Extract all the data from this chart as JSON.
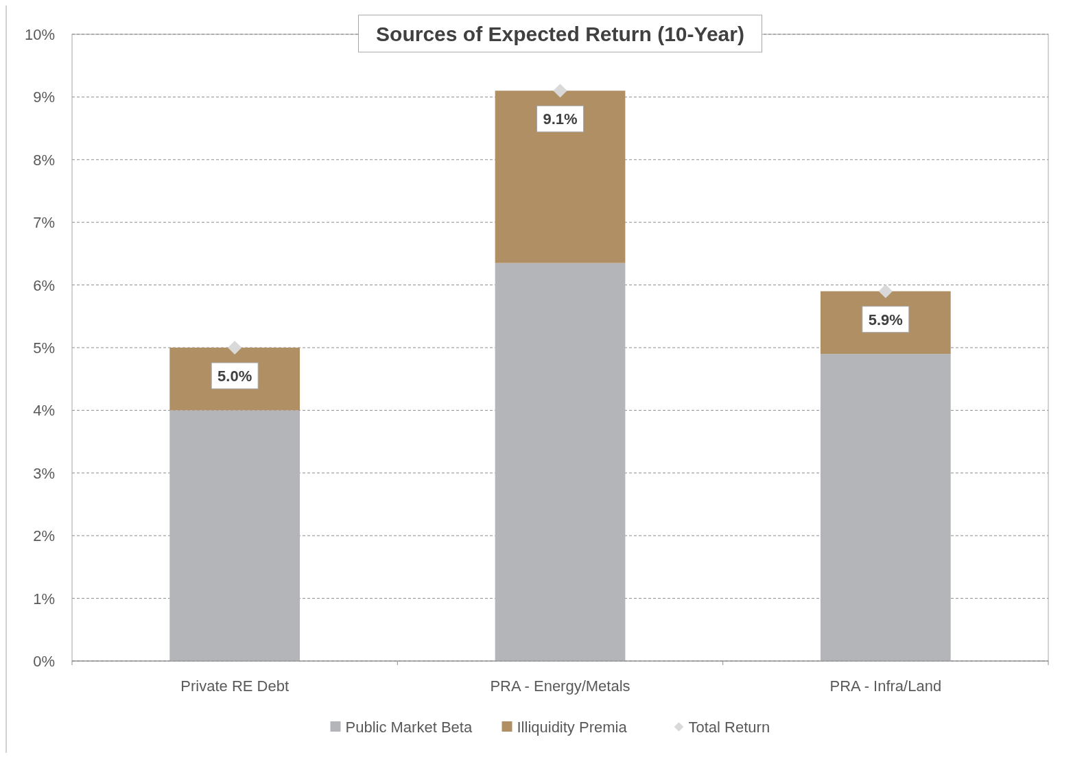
{
  "chart_data": {
    "type": "bar",
    "title": "Sources of Expected Return (10-Year)",
    "stacked": true,
    "categories": [
      "Private RE Debt",
      "PRA - Energy/Metals",
      "PRA - Infra/Land"
    ],
    "series": [
      {
        "name": "Public Market Beta",
        "color": "#b4b5b9",
        "values": [
          4.0,
          6.35,
          4.9
        ]
      },
      {
        "name": "Illiquidity Premia",
        "color": "#b08f64",
        "values": [
          1.0,
          2.75,
          1.0
        ]
      },
      {
        "name": "Total Return",
        "type": "scatter",
        "color": "#d9d9d9",
        "values": [
          5.0,
          9.1,
          5.9
        ],
        "value_labels": [
          "5.0%",
          "9.1%",
          "5.9%"
        ]
      }
    ],
    "ylim": [
      0,
      10
    ],
    "yticks": [
      {
        "value": 0,
        "label": "0%"
      },
      {
        "value": 1,
        "label": "1%"
      },
      {
        "value": 2,
        "label": "2%"
      },
      {
        "value": 3,
        "label": "3%"
      },
      {
        "value": 4,
        "label": "4%"
      },
      {
        "value": 5,
        "label": "5%"
      },
      {
        "value": 6,
        "label": "6%"
      },
      {
        "value": 7,
        "label": "7%"
      },
      {
        "value": 8,
        "label": "8%"
      },
      {
        "value": 9,
        "label": "9%"
      },
      {
        "value": 10,
        "label": "10%"
      }
    ],
    "grid": "y",
    "line_style": "dashed",
    "marker": "diamond",
    "legend": "bottom"
  }
}
